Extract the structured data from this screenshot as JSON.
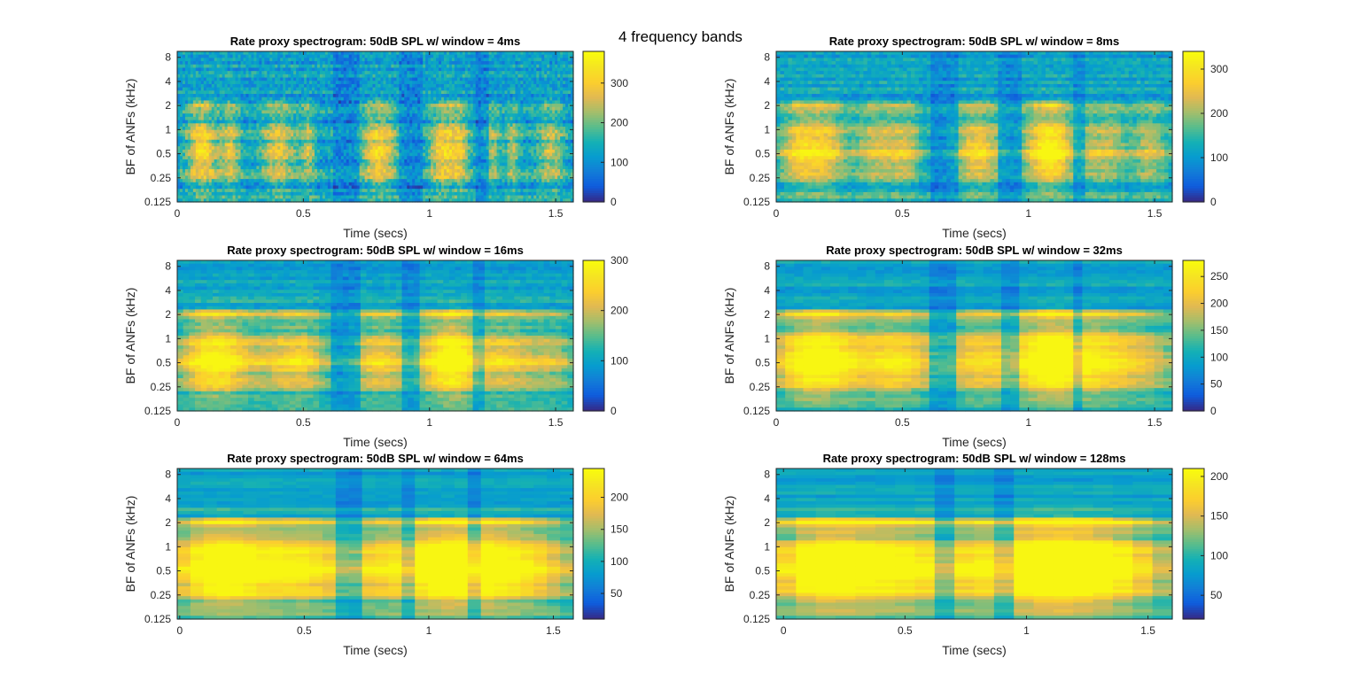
{
  "figure": {
    "suptitle": "4 frequency bands"
  },
  "chart_data": [
    {
      "type": "heatmap",
      "title": "Rate proxy spectrogram: 50dB SPL w/ window = 4ms",
      "window_ms": 4,
      "xlabel": "Time (secs)",
      "ylabel": "BF of ANFs (kHz)",
      "xlim": [
        0,
        1.57
      ],
      "ylim_khz": [
        0.125,
        9.5
      ],
      "yscale": "log",
      "xticks": [
        0,
        0.5,
        1,
        1.5
      ],
      "xtick_labels": [
        "0",
        "0.5",
        "1",
        "1.5"
      ],
      "yticks": [
        0.125,
        0.25,
        0.5,
        1,
        2,
        4,
        8
      ],
      "ytick_labels": [
        "0.125",
        "0.25",
        "0.5",
        "1",
        "2",
        "4",
        "8"
      ],
      "colorbar": {
        "min": 0,
        "max": 380,
        "ticks": [
          0,
          100,
          200,
          300
        ],
        "tick_labels": [
          "0",
          "100",
          "200",
          "300"
        ]
      },
      "colormap": "parula"
    },
    {
      "type": "heatmap",
      "title": "Rate proxy spectrogram: 50dB SPL w/ window = 8ms",
      "window_ms": 8,
      "xlabel": "Time (secs)",
      "ylabel": "BF of ANFs (kHz)",
      "xlim": [
        0,
        1.57
      ],
      "ylim_khz": [
        0.125,
        9.5
      ],
      "yscale": "log",
      "xticks": [
        0,
        0.5,
        1,
        1.5
      ],
      "xtick_labels": [
        "0",
        "0.5",
        "1",
        "1.5"
      ],
      "yticks": [
        0.125,
        0.25,
        0.5,
        1,
        2,
        4,
        8
      ],
      "ytick_labels": [
        "0.125",
        "0.25",
        "0.5",
        "1",
        "2",
        "4",
        "8"
      ],
      "colorbar": {
        "min": 0,
        "max": 340,
        "ticks": [
          0,
          100,
          200,
          300
        ],
        "tick_labels": [
          "0",
          "100",
          "200",
          "300"
        ]
      },
      "colormap": "parula"
    },
    {
      "type": "heatmap",
      "title": "Rate proxy spectrogram: 50dB SPL w/ window = 16ms",
      "window_ms": 16,
      "xlabel": "Time (secs)",
      "ylabel": "BF of ANFs (kHz)",
      "xlim": [
        0,
        1.57
      ],
      "ylim_khz": [
        0.125,
        9.5
      ],
      "yscale": "log",
      "xticks": [
        0,
        0.5,
        1,
        1.5
      ],
      "xtick_labels": [
        "0",
        "0.5",
        "1",
        "1.5"
      ],
      "yticks": [
        0.125,
        0.25,
        0.5,
        1,
        2,
        4,
        8
      ],
      "ytick_labels": [
        "0.125",
        "0.25",
        "0.5",
        "1",
        "2",
        "4",
        "8"
      ],
      "colorbar": {
        "min": 0,
        "max": 300,
        "ticks": [
          0,
          100,
          200,
          300
        ],
        "tick_labels": [
          "0",
          "100",
          "200",
          "300"
        ]
      },
      "colormap": "parula"
    },
    {
      "type": "heatmap",
      "title": "Rate proxy spectrogram: 50dB SPL w/ window = 32ms",
      "window_ms": 32,
      "xlabel": "Time (secs)",
      "ylabel": "BF of ANFs (kHz)",
      "xlim": [
        0,
        1.57
      ],
      "ylim_khz": [
        0.125,
        9.5
      ],
      "yscale": "log",
      "xticks": [
        0,
        0.5,
        1,
        1.5
      ],
      "xtick_labels": [
        "0",
        "0.5",
        "1",
        "1.5"
      ],
      "yticks": [
        0.125,
        0.25,
        0.5,
        1,
        2,
        4,
        8
      ],
      "ytick_labels": [
        "0.125",
        "0.25",
        "0.5",
        "1",
        "2",
        "4",
        "8"
      ],
      "colorbar": {
        "min": 0,
        "max": 280,
        "ticks": [
          0,
          50,
          100,
          150,
          200,
          250
        ],
        "tick_labels": [
          "0",
          "50",
          "100",
          "150",
          "200",
          "250"
        ]
      },
      "colormap": "parula"
    },
    {
      "type": "heatmap",
      "title": "Rate proxy spectrogram: 50dB SPL w/ window = 64ms",
      "window_ms": 64,
      "xlabel": "Time (secs)",
      "ylabel": "BF of ANFs (kHz)",
      "xlim": [
        -0.01,
        1.58
      ],
      "ylim_khz": [
        0.125,
        9.5
      ],
      "yscale": "log",
      "xticks": [
        0,
        0.5,
        1,
        1.5
      ],
      "xtick_labels": [
        "0",
        "0.5",
        "1",
        "1.5"
      ],
      "yticks": [
        0.125,
        0.25,
        0.5,
        1,
        2,
        4,
        8
      ],
      "ytick_labels": [
        "0.125",
        "0.25",
        "0.5",
        "1",
        "2",
        "4",
        "8"
      ],
      "colorbar": {
        "min": 10,
        "max": 245,
        "ticks": [
          50,
          100,
          150,
          200
        ],
        "tick_labels": [
          "50",
          "100",
          "150",
          "200"
        ]
      },
      "colormap": "parula"
    },
    {
      "type": "heatmap",
      "title": "Rate proxy spectrogram: 50dB SPL w/ window = 128ms",
      "window_ms": 128,
      "xlabel": "Time (secs)",
      "ylabel": "BF of ANFs (kHz)",
      "xlim": [
        -0.03,
        1.6
      ],
      "ylim_khz": [
        0.125,
        9.5
      ],
      "yscale": "log",
      "xticks": [
        0,
        0.5,
        1,
        1.5
      ],
      "xtick_labels": [
        "0",
        "0.5",
        "1",
        "1.5"
      ],
      "yticks": [
        0.125,
        0.25,
        0.5,
        1,
        2,
        4,
        8
      ],
      "ytick_labels": [
        "0.125",
        "0.25",
        "0.5",
        "1",
        "2",
        "4",
        "8"
      ],
      "colorbar": {
        "min": 20,
        "max": 210,
        "ticks": [
          50,
          100,
          150,
          200
        ],
        "tick_labels": [
          "50",
          "100",
          "150",
          "200"
        ]
      },
      "colormap": "parula"
    }
  ]
}
